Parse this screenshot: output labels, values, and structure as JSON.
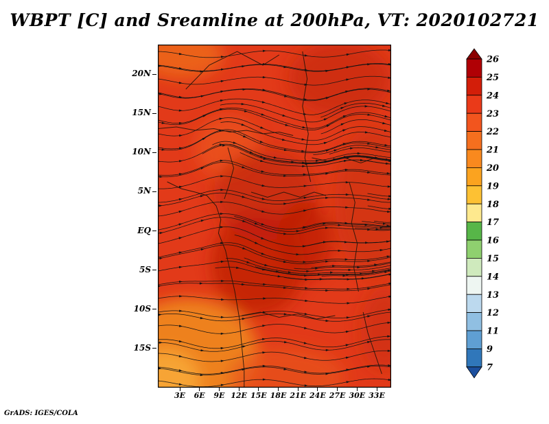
{
  "title": "WBPT [C] and Sreamline at 200hPa, VT: 2020102721",
  "attribution": "GrADS: IGES/COLA",
  "chart_data": {
    "type": "heatmap",
    "title": "WBPT [C] and Sreamline at 200hPa, VT: 2020102721",
    "variable": "WBPT [C] with streamlines",
    "level": "200hPa",
    "valid_time": "2020102721",
    "lat_ticks": [
      "20N",
      "15N",
      "10N",
      "5N",
      "EQ",
      "5S",
      "10S",
      "15S"
    ],
    "lon_ticks": [
      "3E",
      "6E",
      "9E",
      "12E",
      "15E",
      "18E",
      "21E",
      "24E",
      "27E",
      "30E",
      "33E"
    ],
    "colorbar": {
      "levels": [
        26,
        25,
        24,
        23,
        22,
        21,
        20,
        19,
        18,
        17,
        16,
        15,
        14,
        13,
        12,
        11,
        9,
        7
      ],
      "colors": [
        "#8b0000",
        "#b00005",
        "#d31e09",
        "#ea3a19",
        "#f2551e",
        "#f56f1e",
        "#f9891e",
        "#fba31f",
        "#fdc133",
        "#fee98e",
        "#57b648",
        "#8fd06f",
        "#cfeabd",
        "#eef6f2",
        "#bcd9ee",
        "#90bfe2",
        "#5f9fd3",
        "#3077ba",
        "#1c4f9e"
      ]
    },
    "shading": {
      "base_color": "#e23a19",
      "blobs": [
        {
          "x": 0.13,
          "y": 0.9,
          "rx": 0.3,
          "ry": 0.16,
          "color": "#f08a20",
          "o": 0.9
        },
        {
          "x": 0.04,
          "y": 0.98,
          "rx": 0.14,
          "ry": 0.09,
          "color": "#f8a83a",
          "o": 0.9
        },
        {
          "x": 0.1,
          "y": 0.03,
          "rx": 0.18,
          "ry": 0.07,
          "color": "#ee6b1d",
          "o": 0.8
        },
        {
          "x": 0.3,
          "y": 0.3,
          "rx": 0.14,
          "ry": 0.09,
          "color": "#ee5c1c",
          "o": 0.6
        },
        {
          "x": 0.46,
          "y": 0.44,
          "rx": 0.22,
          "ry": 0.13,
          "color": "#c62a0b",
          "o": 0.8
        },
        {
          "x": 0.43,
          "y": 0.64,
          "rx": 0.2,
          "ry": 0.15,
          "color": "#bf1e07",
          "o": 0.8
        },
        {
          "x": 0.78,
          "y": 0.1,
          "rx": 0.22,
          "ry": 0.11,
          "color": "#cb2d0f",
          "o": 0.8
        },
        {
          "x": 0.92,
          "y": 0.46,
          "rx": 0.16,
          "ry": 0.22,
          "color": "#cf3212",
          "o": 0.7
        },
        {
          "x": 0.63,
          "y": 0.57,
          "rx": 0.12,
          "ry": 0.11,
          "color": "#ba1c05",
          "o": 0.7
        },
        {
          "x": 0.55,
          "y": 0.97,
          "rx": 0.25,
          "ry": 0.09,
          "color": "#e8551b",
          "o": 0.7
        },
        {
          "x": 0.97,
          "y": 0.83,
          "rx": 0.1,
          "ry": 0.12,
          "color": "#ca2f10",
          "o": 0.6
        }
      ]
    },
    "map_borders": [
      [
        [
          0.04,
          0.4
        ],
        [
          0.1,
          0.42
        ],
        [
          0.16,
          0.43
        ],
        [
          0.21,
          0.44
        ],
        [
          0.25,
          0.47
        ],
        [
          0.27,
          0.51
        ],
        [
          0.26,
          0.55
        ],
        [
          0.29,
          0.6
        ],
        [
          0.31,
          0.66
        ],
        [
          0.33,
          0.72
        ],
        [
          0.35,
          0.8
        ],
        [
          0.36,
          0.88
        ],
        [
          0.37,
          0.95
        ],
        [
          0.37,
          1.0
        ]
      ],
      [
        [
          0.0,
          0.245
        ],
        [
          0.08,
          0.24
        ],
        [
          0.16,
          0.25
        ],
        [
          0.24,
          0.245
        ],
        [
          0.31,
          0.255
        ],
        [
          0.38,
          0.25
        ],
        [
          0.45,
          0.26
        ],
        [
          0.52,
          0.255
        ],
        [
          0.58,
          0.265
        ]
      ],
      [
        [
          0.12,
          0.13
        ],
        [
          0.22,
          0.06
        ],
        [
          0.34,
          0.02
        ],
        [
          0.45,
          0.06
        ],
        [
          0.52,
          0.03
        ]
      ],
      [
        [
          0.62,
          0.02
        ],
        [
          0.64,
          0.1
        ],
        [
          0.62,
          0.18
        ],
        [
          0.645,
          0.26
        ],
        [
          0.63,
          0.33
        ],
        [
          0.655,
          0.4
        ]
      ],
      [
        [
          0.3,
          0.3
        ],
        [
          0.325,
          0.36
        ],
        [
          0.305,
          0.41
        ],
        [
          0.285,
          0.45
        ]
      ],
      [
        [
          0.4,
          0.43
        ],
        [
          0.47,
          0.445
        ],
        [
          0.54,
          0.43
        ],
        [
          0.61,
          0.445
        ],
        [
          0.67,
          0.43
        ],
        [
          0.72,
          0.44
        ]
      ],
      [
        [
          0.82,
          0.4
        ],
        [
          0.845,
          0.46
        ],
        [
          0.83,
          0.52
        ],
        [
          0.855,
          0.58
        ],
        [
          0.84,
          0.65
        ],
        [
          0.86,
          0.72
        ]
      ],
      [
        [
          0.36,
          0.79
        ],
        [
          0.44,
          0.78
        ],
        [
          0.52,
          0.795
        ],
        [
          0.6,
          0.785
        ],
        [
          0.68,
          0.8
        ],
        [
          0.76,
          0.79
        ]
      ],
      [
        [
          0.88,
          0.78
        ],
        [
          0.9,
          0.84
        ],
        [
          0.93,
          0.9
        ],
        [
          0.96,
          0.96
        ]
      ],
      [
        [
          0.66,
          0.33
        ],
        [
          0.73,
          0.34
        ],
        [
          0.8,
          0.33
        ],
        [
          0.87,
          0.345
        ],
        [
          0.93,
          0.33
        ]
      ]
    ],
    "flow": {
      "base_u": 1.0,
      "vortices": [
        {
          "x": 0.27,
          "y": 0.27,
          "s": 5.0,
          "r": 0.085,
          "dir": 1
        },
        {
          "x": 0.7,
          "y": 0.3,
          "s": 4.0,
          "r": 0.08,
          "dir": -1
        },
        {
          "x": 0.33,
          "y": 0.6,
          "s": 5.0,
          "r": 0.09,
          "dir": 1
        },
        {
          "x": 0.62,
          "y": 0.63,
          "s": 4.2,
          "r": 0.085,
          "dir": -1
        },
        {
          "x": 0.9,
          "y": 0.5,
          "s": 3.0,
          "r": 0.06,
          "dir": 1
        }
      ]
    }
  }
}
